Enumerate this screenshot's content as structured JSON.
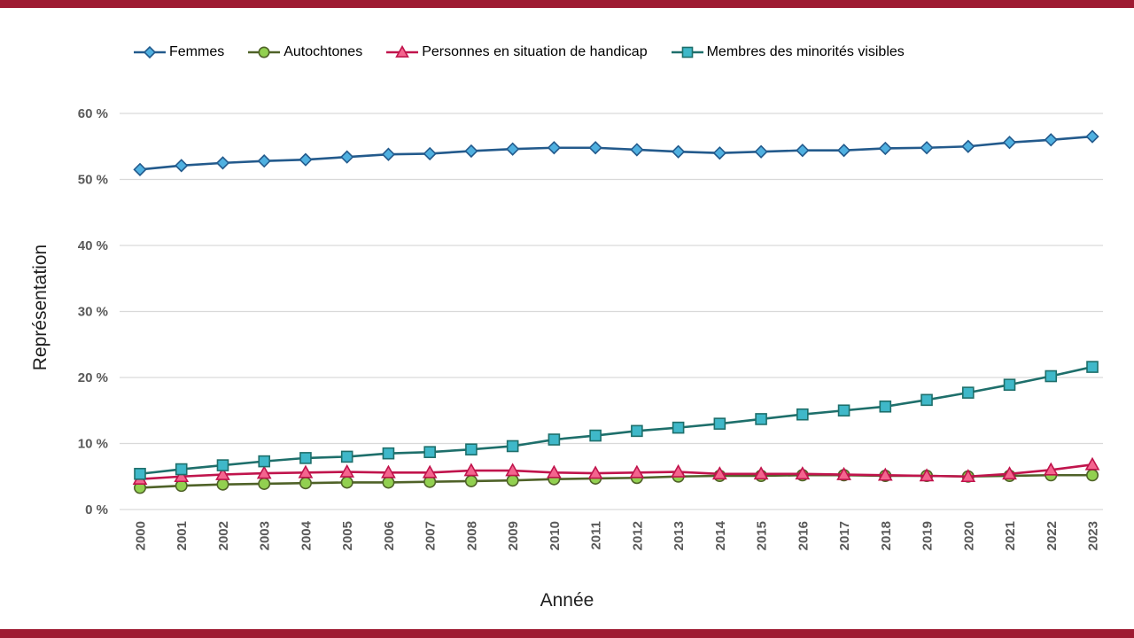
{
  "colors": {
    "border_bar": "#9E1B32",
    "grid_line": "#D9D9D9",
    "tick_text": "#595959",
    "axis_title_text": "#1F1F1F"
  },
  "chart_data": {
    "type": "line",
    "title": "",
    "xlabel": "Année",
    "ylabel": "Représentation",
    "ylim": [
      0,
      60
    ],
    "yticks": [
      0,
      10,
      20,
      30,
      40,
      50,
      60
    ],
    "ytick_suffix": " %",
    "grid": "horizontal",
    "legend_position": "top",
    "x": [
      "2000",
      "2001",
      "2002",
      "2003",
      "2004",
      "2005",
      "2006",
      "2007",
      "2008",
      "2009",
      "2010",
      "2011",
      "2012",
      "2013",
      "2014",
      "2015",
      "2016",
      "2017",
      "2018",
      "2019",
      "2020",
      "2021",
      "2022",
      "2023"
    ],
    "series": [
      {
        "name": "Femmes",
        "marker": "diamond",
        "line_color": "#235A8C",
        "marker_fill": "#4FB0E0",
        "values": [
          51.5,
          52.1,
          52.5,
          52.8,
          53.0,
          53.4,
          53.8,
          53.9,
          54.3,
          54.6,
          54.8,
          54.8,
          54.5,
          54.2,
          54.0,
          54.2,
          54.4,
          54.4,
          54.7,
          54.8,
          55.0,
          55.6,
          56.0,
          56.5
        ]
      },
      {
        "name": "Autochtones",
        "marker": "circle",
        "line_color": "#4F6228",
        "marker_fill": "#92D050",
        "values": [
          3.3,
          3.6,
          3.8,
          3.9,
          4.0,
          4.1,
          4.1,
          4.2,
          4.3,
          4.4,
          4.6,
          4.7,
          4.8,
          5.0,
          5.1,
          5.1,
          5.2,
          5.2,
          5.1,
          5.1,
          5.0,
          5.1,
          5.2,
          5.2
        ]
      },
      {
        "name": "Personnes en situation de handicap",
        "marker": "triangle",
        "line_color": "#C0144C",
        "marker_fill": "#F4648E",
        "values": [
          4.6,
          5.0,
          5.3,
          5.5,
          5.6,
          5.7,
          5.6,
          5.6,
          5.9,
          5.9,
          5.6,
          5.5,
          5.6,
          5.7,
          5.4,
          5.4,
          5.4,
          5.3,
          5.2,
          5.1,
          5.0,
          5.4,
          6.0,
          6.8
        ]
      },
      {
        "name": "Membres des minorités visibles",
        "marker": "square",
        "line_color": "#1E6F6B",
        "marker_fill": "#3FB8C9",
        "values": [
          5.4,
          6.1,
          6.7,
          7.3,
          7.8,
          8.0,
          8.5,
          8.7,
          9.1,
          9.6,
          10.6,
          11.2,
          11.9,
          12.4,
          13.0,
          13.7,
          14.4,
          15.0,
          15.6,
          16.6,
          17.7,
          18.9,
          20.2,
          21.6
        ]
      }
    ]
  }
}
